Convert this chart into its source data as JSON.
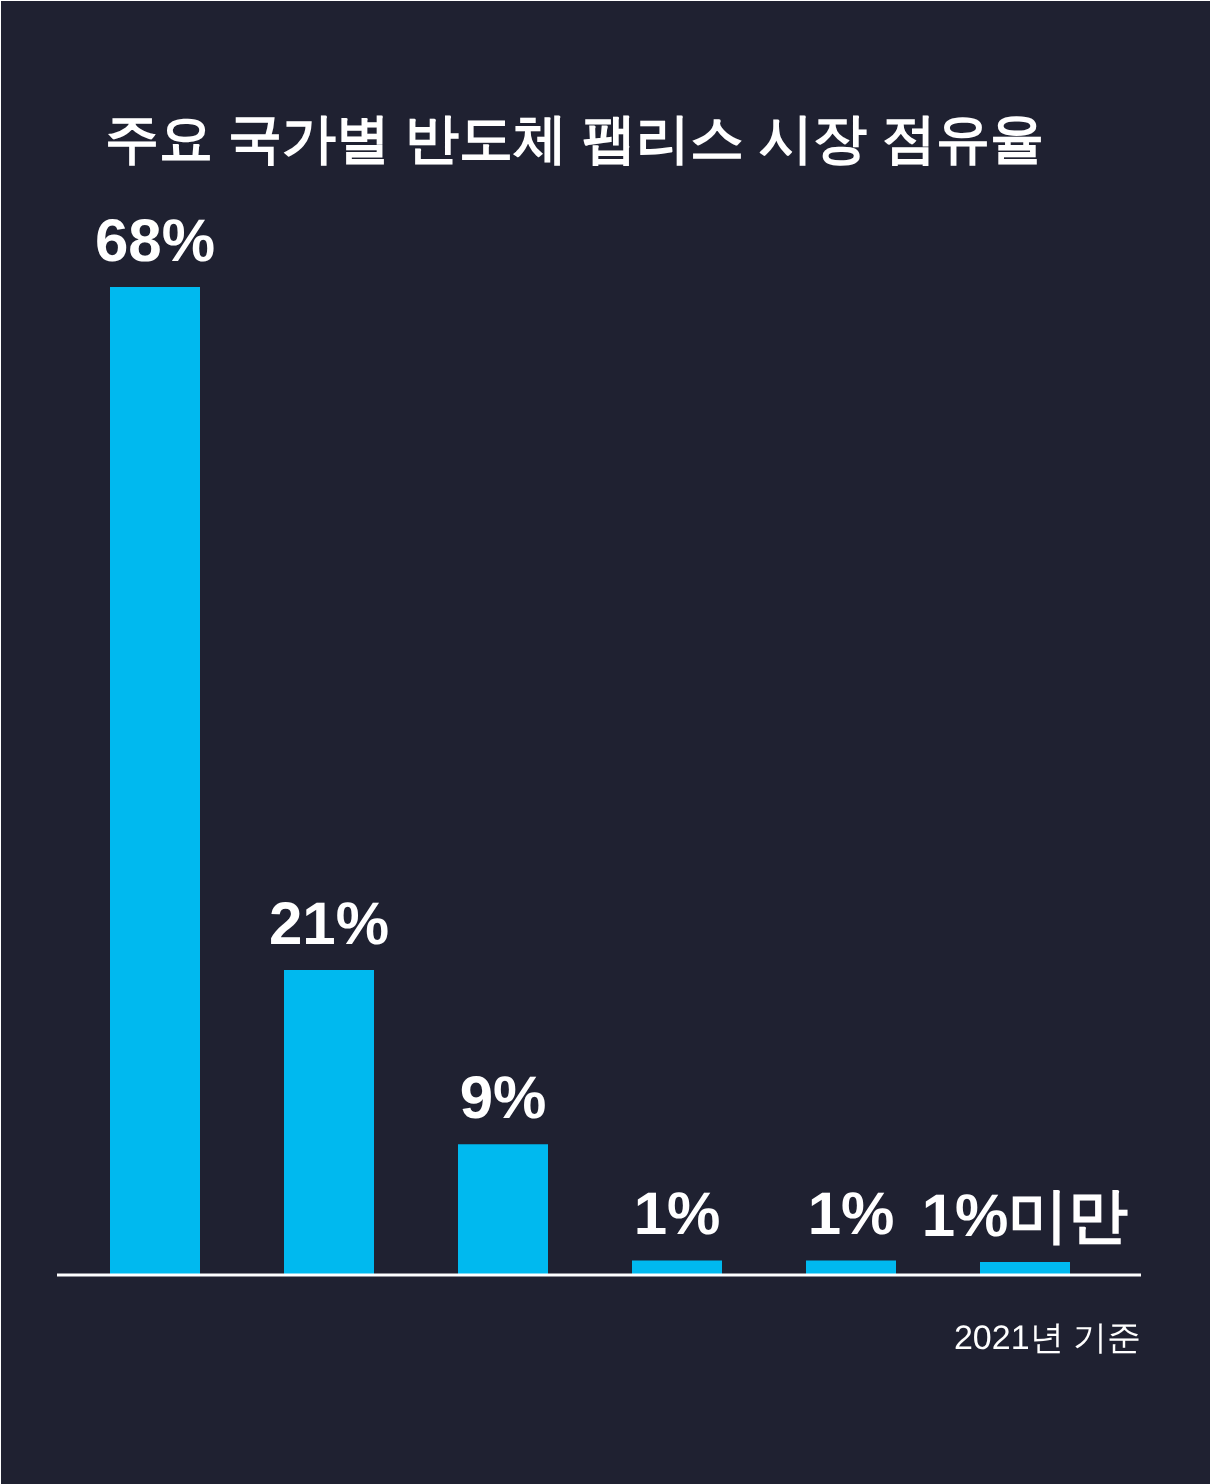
{
  "chart_data": {
    "type": "bar",
    "title": "주요 국가별 반도체 팹리스 시장 점유율",
    "categories": [
      null,
      null,
      null,
      null,
      null,
      null
    ],
    "values": [
      68,
      21,
      9,
      1,
      1,
      0.9
    ],
    "value_labels": [
      "68%",
      "21%",
      "9%",
      "1%",
      "1%",
      "1%미만"
    ],
    "color": "#00b9ef",
    "annotations": [
      "2021년 기준"
    ]
  }
}
